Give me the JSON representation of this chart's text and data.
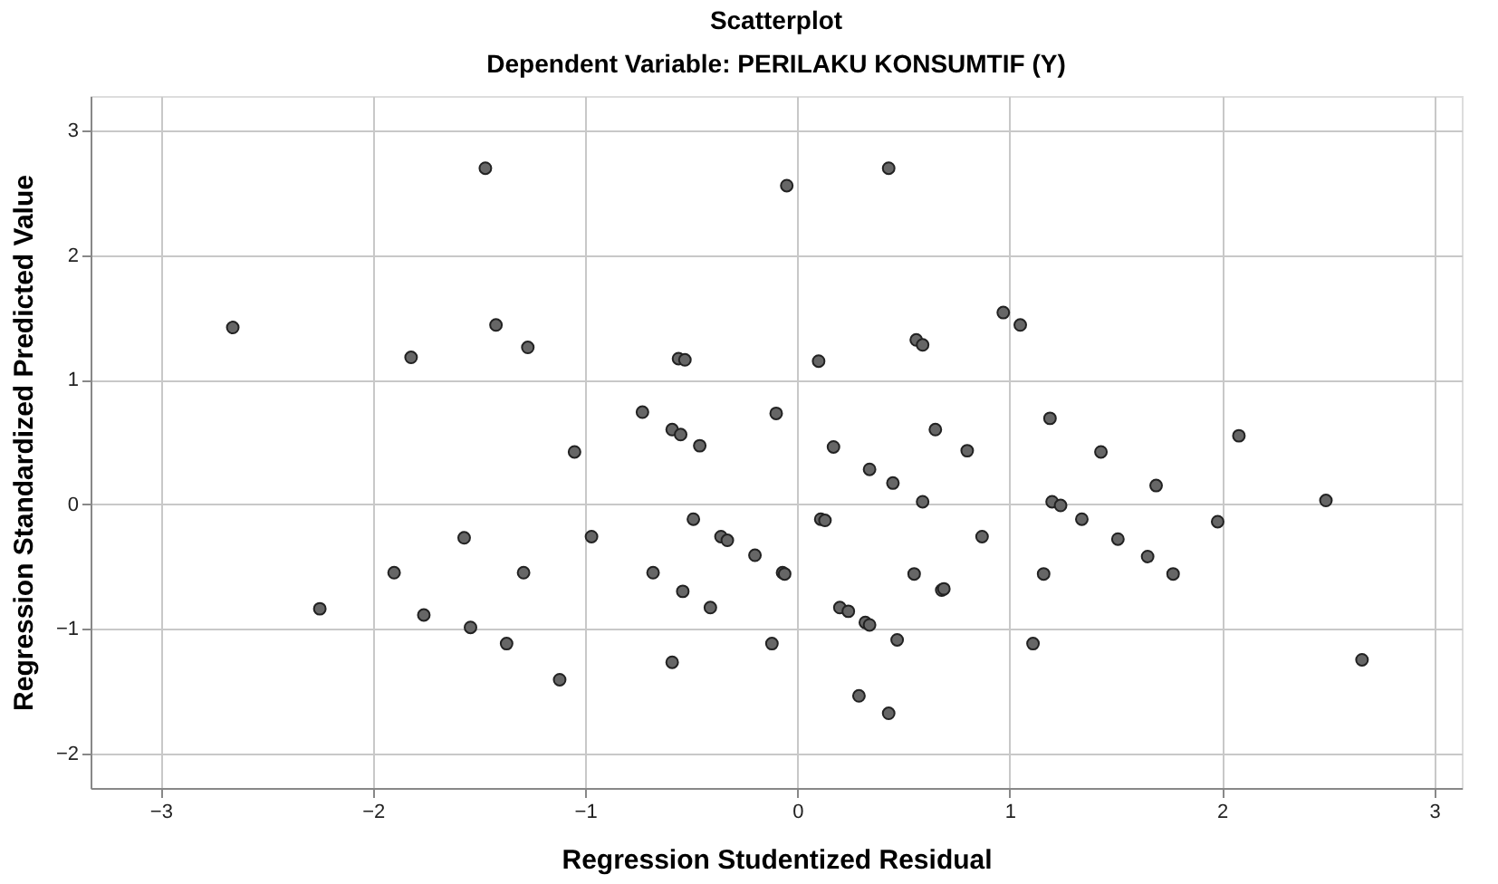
{
  "chart_data": {
    "type": "scatter",
    "title": "Scatterplot",
    "subtitle": "Dependent Variable: PERILAKU KONSUMTIF (Y)",
    "xlabel": "Regression Studentized Residual",
    "ylabel": "Regression Standardized Predicted Value",
    "xlim": [
      -3.33,
      3.13
    ],
    "ylim": [
      -2.28,
      3.28
    ],
    "xticks": [
      -3,
      -2,
      -1,
      0,
      1,
      2,
      3
    ],
    "yticks": [
      -2,
      -1,
      0,
      1,
      2,
      3
    ],
    "grid": true,
    "marker": "circle",
    "series": [
      {
        "color": "#666666",
        "x": [
          -1.47,
          -0.05,
          -2.66,
          -1.42,
          -1.82,
          -1.27,
          -0.56,
          -0.53,
          -0.73,
          -0.1,
          -0.59,
          -0.55,
          -0.46,
          -1.05,
          -0.49,
          -1.57,
          -0.97,
          -0.36,
          -0.33,
          -0.2,
          -1.9,
          -1.29,
          -0.68,
          -0.07,
          -0.06,
          -0.54,
          -0.41,
          -2.25,
          -1.76,
          -1.54,
          -1.37,
          -0.12,
          -0.59,
          -1.12,
          0.43,
          0.97,
          1.05,
          0.56,
          0.59,
          0.1,
          1.19,
          2.08,
          0.17,
          0.65,
          0.8,
          1.43,
          0.34,
          0.45,
          1.69,
          0.59,
          1.2,
          1.24,
          2.49,
          0.11,
          0.13,
          1.34,
          1.98,
          0.87,
          1.51,
          1.65,
          0.55,
          1.16,
          1.77,
          0.68,
          0.69,
          0.2,
          0.24,
          0.32,
          0.34,
          0.47,
          1.11,
          2.66,
          0.29,
          0.43
        ],
        "values": [
          2.7,
          2.56,
          1.42,
          1.44,
          1.18,
          1.26,
          1.17,
          1.16,
          0.74,
          0.73,
          0.6,
          0.56,
          0.47,
          0.42,
          -0.12,
          -0.27,
          -0.26,
          -0.26,
          -0.29,
          -0.41,
          -0.55,
          -0.55,
          -0.55,
          -0.55,
          -0.56,
          -0.7,
          -0.83,
          -0.84,
          -0.89,
          -0.99,
          -1.12,
          -1.12,
          -1.27,
          -1.41,
          2.7,
          1.54,
          1.44,
          1.32,
          1.28,
          1.15,
          0.69,
          0.55,
          0.46,
          0.6,
          0.43,
          0.42,
          0.28,
          0.17,
          0.15,
          0.02,
          0.02,
          -0.01,
          0.03,
          -0.12,
          -0.13,
          -0.12,
          -0.14,
          -0.26,
          -0.28,
          -0.42,
          -0.56,
          -0.56,
          -0.56,
          -0.69,
          -0.68,
          -0.83,
          -0.86,
          -0.95,
          -0.97,
          -1.09,
          -1.12,
          -1.25,
          -1.54,
          -1.68
        ]
      }
    ]
  }
}
